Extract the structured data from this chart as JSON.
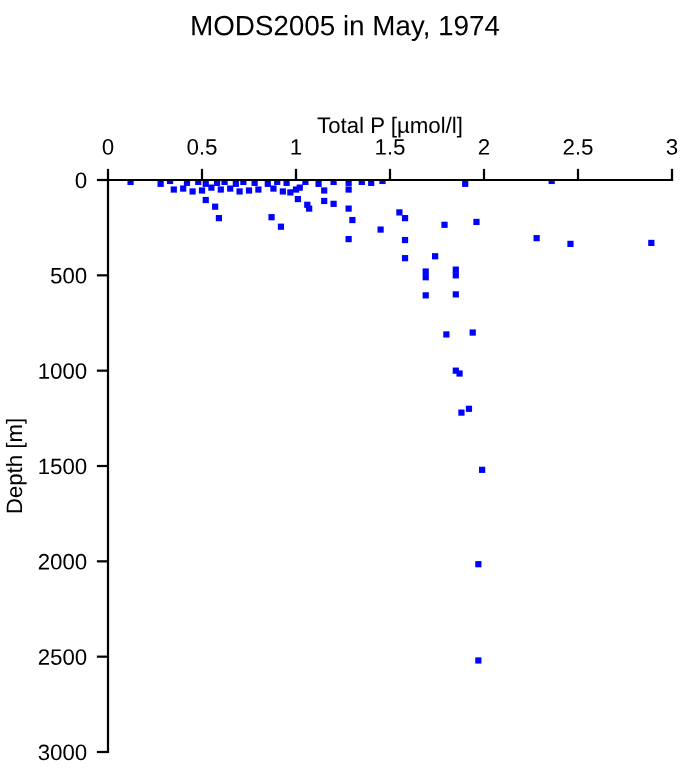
{
  "chart_data": {
    "type": "scatter",
    "title": "MODS2005 in May, 1974",
    "xlabel": "Total P [µmol/l]",
    "ylabel": "Depth [m]",
    "xlim": [
      0,
      3
    ],
    "xticks": [
      0,
      0.5,
      1,
      1.5,
      2,
      2.5,
      3
    ],
    "ylim": [
      3000,
      0
    ],
    "yticks": [
      0,
      500,
      1000,
      1500,
      2000,
      2500,
      3000
    ],
    "grid": false,
    "marker": "square",
    "series": [
      {
        "color": "#0000ff",
        "x": [
          0.12,
          0.28,
          0.33,
          0.42,
          0.48,
          0.52,
          0.58,
          0.62,
          0.68,
          0.72,
          0.78,
          0.85,
          0.9,
          0.95,
          1.05,
          1.12,
          1.2,
          1.28,
          1.35,
          1.4,
          1.46,
          1.9,
          2.36,
          0.35,
          0.4,
          0.45,
          0.5,
          0.55,
          0.6,
          0.65,
          0.7,
          0.75,
          0.8,
          0.88,
          0.93,
          1.0,
          1.02,
          1.15,
          0.52,
          0.57,
          0.59,
          0.87,
          0.92,
          0.97,
          1.01,
          1.06,
          1.07,
          1.15,
          1.2,
          1.28,
          1.3,
          1.28,
          1.45,
          1.28,
          1.55,
          1.58,
          1.58,
          1.58,
          1.74,
          1.79,
          1.96,
          2.28,
          2.46,
          2.89,
          1.69,
          1.85,
          1.69,
          1.85,
          1.69,
          1.85,
          1.8,
          1.94,
          1.85,
          1.87,
          1.88,
          1.92,
          1.99,
          1.97,
          1.97
        ],
        "values": [
          10,
          20,
          5,
          15,
          10,
          20,
          15,
          10,
          20,
          10,
          15,
          20,
          10,
          15,
          10,
          20,
          10,
          15,
          10,
          15,
          5,
          20,
          5,
          50,
          45,
          60,
          55,
          40,
          50,
          45,
          60,
          55,
          50,
          45,
          60,
          50,
          40,
          55,
          105,
          140,
          200,
          195,
          245,
          65,
          100,
          130,
          150,
          110,
          125,
          150,
          210,
          310,
          260,
          50,
          170,
          200,
          315,
          410,
          400,
          235,
          220,
          305,
          335,
          330,
          480,
          470,
          510,
          500,
          605,
          600,
          810,
          800,
          1000,
          1015,
          1220,
          1200,
          1520,
          2015,
          2520
        ]
      }
    ]
  }
}
